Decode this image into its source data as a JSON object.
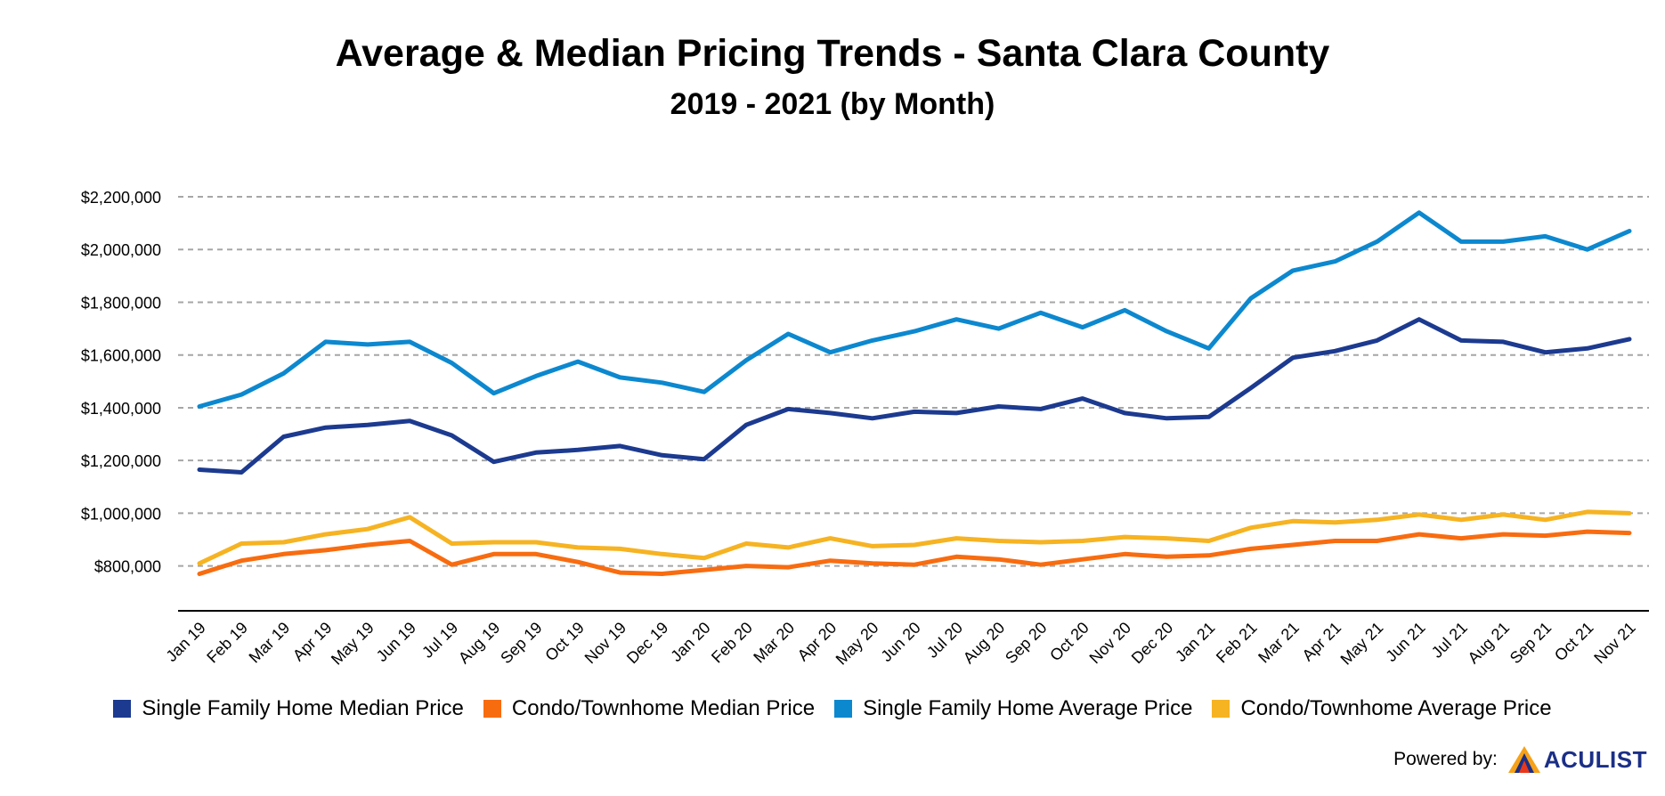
{
  "chart_data": {
    "type": "line",
    "title": "Average & Median Pricing Trends - Santa Clara County",
    "subtitle": "2019 - 2021 (by Month)",
    "categories": [
      "Jan 19",
      "Feb 19",
      "Mar 19",
      "Apr 19",
      "May 19",
      "Jun 19",
      "Jul 19",
      "Aug 19",
      "Sep 19",
      "Oct 19",
      "Nov 19",
      "Dec 19",
      "Jan 20",
      "Feb 20",
      "Mar 20",
      "Apr 20",
      "May 20",
      "Jun 20",
      "Jul 20",
      "Aug 20",
      "Sep 20",
      "Oct 20",
      "Nov 20",
      "Dec 20",
      "Jan 21",
      "Feb 21",
      "Mar 21",
      "Apr 21",
      "May 21",
      "Jun 21",
      "Jul 21",
      "Aug 21",
      "Sep 21",
      "Oct 21",
      "Nov 21"
    ],
    "y_ticks": [
      "$800,000",
      "$1,000,000",
      "$1,200,000",
      "$1,400,000",
      "$1,600,000",
      "$1,800,000",
      "$2,000,000",
      "$2,200,000"
    ],
    "y_tick_values": [
      800000,
      1000000,
      1200000,
      1400000,
      1600000,
      1800000,
      2000000,
      2200000
    ],
    "ylim": [
      630000,
      2200000
    ],
    "grid": true,
    "legend_position": "bottom",
    "series": [
      {
        "name": "Single Family Home Median Price",
        "color": "#1c3a8f",
        "values": [
          1165000,
          1155000,
          1290000,
          1325000,
          1335000,
          1350000,
          1295000,
          1195000,
          1230000,
          1240000,
          1255000,
          1220000,
          1205000,
          1335000,
          1395000,
          1380000,
          1360000,
          1385000,
          1380000,
          1405000,
          1395000,
          1435000,
          1380000,
          1360000,
          1365000,
          1475000,
          1590000,
          1615000,
          1655000,
          1735000,
          1655000,
          1650000,
          1610000,
          1625000,
          1660000
        ]
      },
      {
        "name": "Condo/Townhome Median Price",
        "color": "#f86c10",
        "values": [
          770000,
          820000,
          845000,
          860000,
          880000,
          895000,
          805000,
          845000,
          845000,
          815000,
          775000,
          770000,
          785000,
          800000,
          795000,
          820000,
          810000,
          805000,
          835000,
          825000,
          805000,
          825000,
          845000,
          835000,
          840000,
          865000,
          880000,
          895000,
          895000,
          920000,
          905000,
          920000,
          915000,
          930000,
          925000
        ]
      },
      {
        "name": "Single Family Home Average Price",
        "color": "#0c88cf",
        "values": [
          1405000,
          1450000,
          1530000,
          1650000,
          1640000,
          1650000,
          1570000,
          1455000,
          1520000,
          1575000,
          1515000,
          1495000,
          1460000,
          1580000,
          1680000,
          1610000,
          1655000,
          1690000,
          1735000,
          1700000,
          1760000,
          1705000,
          1770000,
          1690000,
          1625000,
          1815000,
          1920000,
          1955000,
          2030000,
          2140000,
          2030000,
          2030000,
          2050000,
          2000000,
          2070000
        ]
      },
      {
        "name": "Condo/Townhome Average Price",
        "color": "#f6b322",
        "values": [
          810000,
          885000,
          890000,
          920000,
          940000,
          985000,
          885000,
          890000,
          890000,
          870000,
          865000,
          845000,
          830000,
          885000,
          870000,
          905000,
          875000,
          880000,
          905000,
          895000,
          890000,
          895000,
          910000,
          905000,
          895000,
          945000,
          970000,
          965000,
          975000,
          995000,
          975000,
          995000,
          975000,
          1005000,
          1000000
        ]
      }
    ]
  },
  "footer": {
    "powered_by": "Powered by:",
    "logo_text": "ACULIST"
  }
}
